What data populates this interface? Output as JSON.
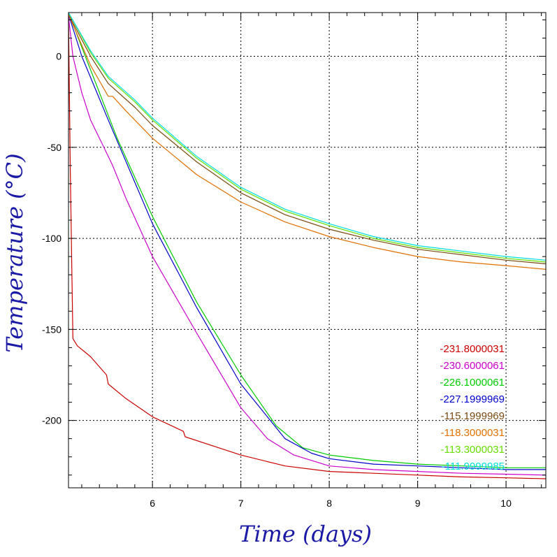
{
  "chart_data": {
    "type": "line",
    "xlabel": "Time (days)",
    "ylabel": "Temperature (°C)",
    "xlim": [
      5.05,
      10.45
    ],
    "ylim": [
      -237,
      24
    ],
    "xticks": [
      6,
      7,
      8,
      9,
      10
    ],
    "yticks": [
      0,
      -50,
      -100,
      -150,
      -200
    ],
    "grid": true,
    "legend_position": "bottom-right",
    "series": [
      {
        "name": "-231.8000031",
        "color": "#cc0000",
        "points": [
          [
            5.05,
            22
          ],
          [
            5.07,
            -60
          ],
          [
            5.1,
            -155
          ],
          [
            5.15,
            -159
          ],
          [
            5.3,
            -165
          ],
          [
            5.48,
            -175
          ],
          [
            5.5,
            -180
          ],
          [
            5.7,
            -188
          ],
          [
            6.0,
            -198
          ],
          [
            6.35,
            -206
          ],
          [
            6.37,
            -209
          ],
          [
            7.0,
            -219
          ],
          [
            7.5,
            -225
          ],
          [
            8.0,
            -228
          ],
          [
            8.5,
            -229
          ],
          [
            9.0,
            -230
          ],
          [
            9.5,
            -231
          ],
          [
            10.0,
            -231.5
          ],
          [
            10.45,
            -232
          ]
        ]
      },
      {
        "name": "-230.6000061",
        "color": "#cc00cc",
        "points": [
          [
            5.05,
            22
          ],
          [
            5.1,
            0
          ],
          [
            5.2,
            -20
          ],
          [
            5.3,
            -35
          ],
          [
            5.45,
            -50
          ],
          [
            5.55,
            -60
          ],
          [
            5.7,
            -78
          ],
          [
            6.0,
            -110
          ],
          [
            6.5,
            -152
          ],
          [
            7.0,
            -193
          ],
          [
            7.3,
            -210
          ],
          [
            7.6,
            -219
          ],
          [
            8.0,
            -225
          ],
          [
            8.5,
            -227
          ],
          [
            9.0,
            -228
          ],
          [
            9.5,
            -229
          ],
          [
            10.0,
            -229.5
          ],
          [
            10.45,
            -230
          ]
        ]
      },
      {
        "name": "-226.1000061",
        "color": "#00cc00",
        "points": [
          [
            5.05,
            24
          ],
          [
            5.2,
            5
          ],
          [
            5.4,
            -20
          ],
          [
            5.6,
            -45
          ],
          [
            6.0,
            -88
          ],
          [
            6.5,
            -135
          ],
          [
            7.0,
            -175
          ],
          [
            7.4,
            -203
          ],
          [
            7.7,
            -215
          ],
          [
            8.0,
            -219
          ],
          [
            8.5,
            -222
          ],
          [
            9.0,
            -224
          ],
          [
            9.5,
            -225
          ],
          [
            10.0,
            -226
          ],
          [
            10.45,
            -226
          ]
        ]
      },
      {
        "name": "-227.1999969",
        "color": "#0000cc",
        "points": [
          [
            5.05,
            23
          ],
          [
            5.2,
            0
          ],
          [
            5.5,
            -35
          ],
          [
            6.0,
            -92
          ],
          [
            6.5,
            -138
          ],
          [
            7.0,
            -180
          ],
          [
            7.5,
            -210
          ],
          [
            7.8,
            -218
          ],
          [
            8.0,
            -221
          ],
          [
            8.5,
            -224
          ],
          [
            9.0,
            -225
          ],
          [
            9.5,
            -226
          ],
          [
            10.0,
            -227
          ],
          [
            10.45,
            -227
          ]
        ]
      },
      {
        "name": "-115.1999969",
        "color": "#7a4a10",
        "points": [
          [
            5.05,
            23
          ],
          [
            5.3,
            0
          ],
          [
            5.5,
            -15
          ],
          [
            5.8,
            -28
          ],
          [
            6.0,
            -38
          ],
          [
            6.5,
            -58
          ],
          [
            7.0,
            -75
          ],
          [
            7.5,
            -87
          ],
          [
            8.0,
            -95
          ],
          [
            8.5,
            -101
          ],
          [
            9.0,
            -106
          ],
          [
            9.5,
            -109
          ],
          [
            10.0,
            -112
          ],
          [
            10.45,
            -114
          ]
        ]
      },
      {
        "name": "-118.3000031",
        "color": "#e07000",
        "points": [
          [
            5.05,
            23
          ],
          [
            5.3,
            -5
          ],
          [
            5.5,
            -22
          ],
          [
            5.55,
            -22
          ],
          [
            5.7,
            -30
          ],
          [
            6.0,
            -45
          ],
          [
            6.5,
            -65
          ],
          [
            7.0,
            -80
          ],
          [
            7.5,
            -91
          ],
          [
            8.0,
            -99
          ],
          [
            8.5,
            -105
          ],
          [
            9.0,
            -110
          ],
          [
            9.5,
            -113
          ],
          [
            10.0,
            -115
          ],
          [
            10.45,
            -117
          ]
        ]
      },
      {
        "name": "-113.3000031",
        "color": "#66dd00",
        "points": [
          [
            5.05,
            24
          ],
          [
            5.3,
            2
          ],
          [
            5.5,
            -12
          ],
          [
            5.8,
            -25
          ],
          [
            6.0,
            -35
          ],
          [
            6.5,
            -56
          ],
          [
            7.0,
            -73
          ],
          [
            7.5,
            -85
          ],
          [
            8.0,
            -93
          ],
          [
            8.5,
            -100
          ],
          [
            9.0,
            -105
          ],
          [
            9.5,
            -108
          ],
          [
            10.0,
            -111
          ],
          [
            10.45,
            -113
          ]
        ]
      },
      {
        "name": "-111.9999985",
        "color": "#00dddd",
        "points": [
          [
            5.05,
            24
          ],
          [
            5.3,
            3
          ],
          [
            5.5,
            -11
          ],
          [
            5.8,
            -24
          ],
          [
            6.0,
            -34
          ],
          [
            6.5,
            -55
          ],
          [
            7.0,
            -72
          ],
          [
            7.5,
            -84
          ],
          [
            8.0,
            -92
          ],
          [
            8.5,
            -99
          ],
          [
            9.0,
            -104
          ],
          [
            9.5,
            -107
          ],
          [
            10.0,
            -110
          ],
          [
            10.45,
            -112
          ]
        ]
      }
    ]
  }
}
